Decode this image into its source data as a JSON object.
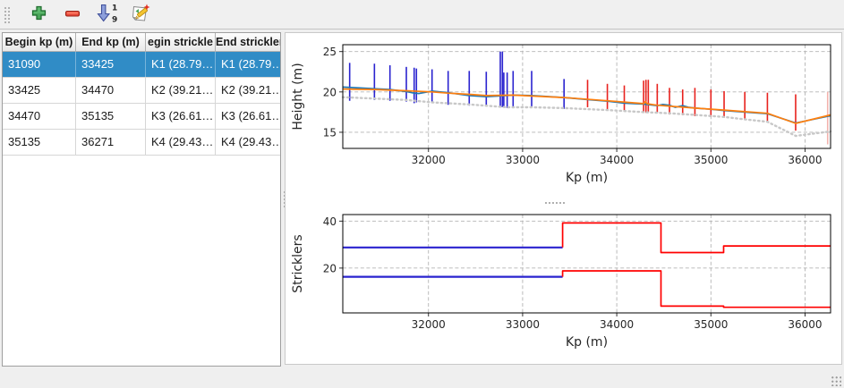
{
  "toolbar": {
    "buttons": [
      {
        "name": "add-row-button",
        "icon": "plus-icon"
      },
      {
        "name": "remove-row-button",
        "icon": "minus-icon"
      },
      {
        "name": "sort-button",
        "icon": "sort-descending-1-9-icon"
      },
      {
        "name": "edit-button",
        "icon": "edit-document-pencil-icon"
      }
    ]
  },
  "table": {
    "columns": [
      "Begin kp (m)",
      "End kp (m)",
      "egin strickle",
      "End strickler"
    ],
    "selected_row_index": 0,
    "rows": [
      {
        "cells": [
          "31090",
          "33425",
          "K1 (28.79…",
          "K1 (28.79…"
        ]
      },
      {
        "cells": [
          "33425",
          "34470",
          "K2 (39.21…",
          "K2 (39.21…"
        ]
      },
      {
        "cells": [
          "34470",
          "35135",
          "K3 (26.61…",
          "K3 (26.61…"
        ]
      },
      {
        "cells": [
          "35135",
          "36271",
          "K4 (29.43…",
          "K4 (29.43…"
        ]
      }
    ]
  },
  "colors": {
    "selection": "#308cc6",
    "section_blue": "#2a23cf",
    "section_red": "#e8211d",
    "profile_blue": "#1f77b4",
    "profile_orange": "#ff7f0e",
    "profile_gray_dotted": "#c8c8c8"
  },
  "chart_data": [
    {
      "type": "line",
      "title": "",
      "xlabel": "Kp (m)",
      "ylabel": "Height (m)",
      "xlim": [
        31090,
        36271
      ],
      "ylim": [
        13.0,
        25.85
      ],
      "xticks": [
        32000,
        33000,
        34000,
        35000,
        36000
      ],
      "yticks": [
        15,
        20,
        25
      ],
      "grid": true,
      "legend": "none",
      "vlines": [
        {
          "x": 31163,
          "ymin": 18.9,
          "ymax": 23.6,
          "color": "#2a23cf"
        },
        {
          "x": 31426,
          "ymin": 19.0,
          "ymax": 23.5,
          "color": "#2a23cf"
        },
        {
          "x": 31591,
          "ymin": 18.9,
          "ymax": 23.3,
          "color": "#2a23cf"
        },
        {
          "x": 31765,
          "ymin": 18.8,
          "ymax": 23.1,
          "color": "#2a23cf"
        },
        {
          "x": 31848,
          "ymin": 18.6,
          "ymax": 23.0,
          "color": "#2a23cf"
        },
        {
          "x": 31872,
          "ymin": 18.7,
          "ymax": 22.9,
          "color": "#2a23cf"
        },
        {
          "x": 32038,
          "ymin": 18.6,
          "ymax": 22.8,
          "color": "#2a23cf"
        },
        {
          "x": 32209,
          "ymin": 18.4,
          "ymax": 22.6,
          "color": "#2a23cf"
        },
        {
          "x": 32433,
          "ymin": 18.3,
          "ymax": 22.6,
          "color": "#2a23cf"
        },
        {
          "x": 32614,
          "ymin": 18.4,
          "ymax": 22.5,
          "color": "#2a23cf"
        },
        {
          "x": 32763,
          "ymin": 18.1,
          "ymax": 25.0,
          "color": "#2a23cf"
        },
        {
          "x": 32785,
          "ymin": 18.1,
          "ymax": 25.0,
          "color": "#2a23cf"
        },
        {
          "x": 32800,
          "ymin": 18.1,
          "ymax": 22.4,
          "color": "#2a23cf"
        },
        {
          "x": 32836,
          "ymin": 18.0,
          "ymax": 22.4,
          "color": "#2a23cf"
        },
        {
          "x": 32899,
          "ymin": 18.2,
          "ymax": 22.6,
          "color": "#2a23cf"
        },
        {
          "x": 33096,
          "ymin": 18.1,
          "ymax": 22.6,
          "color": "#2a23cf"
        },
        {
          "x": 33440,
          "ymin": 17.9,
          "ymax": 21.6,
          "color": "#2a23cf"
        },
        {
          "x": 33690,
          "ymin": 18.1,
          "ymax": 21.5,
          "color": "#e8211d"
        },
        {
          "x": 33900,
          "ymin": 17.8,
          "ymax": 21.0,
          "color": "#e8211d"
        },
        {
          "x": 34080,
          "ymin": 17.6,
          "ymax": 20.8,
          "color": "#e8211d"
        },
        {
          "x": 34285,
          "ymin": 17.4,
          "ymax": 21.4,
          "color": "#e8211d"
        },
        {
          "x": 34310,
          "ymin": 17.4,
          "ymax": 21.5,
          "color": "#e8211d"
        },
        {
          "x": 34335,
          "ymin": 17.5,
          "ymax": 21.5,
          "color": "#e8211d"
        },
        {
          "x": 34430,
          "ymin": 17.4,
          "ymax": 21.0,
          "color": "#e8211d"
        },
        {
          "x": 34560,
          "ymin": 17.2,
          "ymax": 20.5,
          "color": "#e8211d"
        },
        {
          "x": 34700,
          "ymin": 17.1,
          "ymax": 20.3,
          "color": "#e8211d"
        },
        {
          "x": 34830,
          "ymin": 17.0,
          "ymax": 20.5,
          "color": "#e8211d"
        },
        {
          "x": 35000,
          "ymin": 16.9,
          "ymax": 20.3,
          "color": "#e8211d"
        },
        {
          "x": 35140,
          "ymin": 16.8,
          "ymax": 20.1,
          "color": "#e8211d"
        },
        {
          "x": 35360,
          "ymin": 16.6,
          "ymax": 20.0,
          "color": "#e8211d"
        },
        {
          "x": 35600,
          "ymin": 16.4,
          "ymax": 19.9,
          "color": "#e8211d"
        },
        {
          "x": 35900,
          "ymin": 15.2,
          "ymax": 19.7,
          "color": "#e8211d"
        },
        {
          "x": 36240,
          "ymin": 13.5,
          "ymax": 20.0,
          "color": "#f2b3ad"
        }
      ],
      "series": [
        {
          "name": "lowest-point-dotted-gray",
          "color": "#c8c8c8",
          "dash": "1.5 3.5",
          "width": 2.4,
          "x": [
            31090,
            31765,
            32038,
            32433,
            32836,
            33096,
            33440,
            33900,
            34285,
            34560,
            34830,
            35140,
            35360,
            35600,
            35900,
            36271
          ],
          "y": [
            19.35,
            19.0,
            18.7,
            18.45,
            18.1,
            18.1,
            18.0,
            17.75,
            17.5,
            17.35,
            17.15,
            16.9,
            16.6,
            16.3,
            14.55,
            15.1
          ]
        },
        {
          "name": "height-profile-blue",
          "color": "#1f77b4",
          "width": 1.7,
          "x": [
            31090,
            31426,
            31591,
            31765,
            31848,
            31900,
            32038,
            32209,
            32433,
            32614,
            32763,
            32899,
            33096,
            33440,
            33690,
            33900,
            34080,
            34285,
            34430,
            34490,
            34560,
            34620,
            34700,
            34760,
            34830,
            35000,
            35140,
            35360,
            35600,
            35900,
            36271
          ],
          "y": [
            20.6,
            20.4,
            20.3,
            20.05,
            19.85,
            19.8,
            20.1,
            19.9,
            19.55,
            19.4,
            19.5,
            19.6,
            19.55,
            19.3,
            19.05,
            18.85,
            18.6,
            18.5,
            18.3,
            18.45,
            18.35,
            18.1,
            18.3,
            18.1,
            18.0,
            17.85,
            17.7,
            17.5,
            17.3,
            16.15,
            17.05
          ]
        },
        {
          "name": "height-profile-orange",
          "color": "#ff7f0e",
          "width": 1.7,
          "x": [
            31090,
            31426,
            31765,
            32038,
            32209,
            32433,
            32614,
            32899,
            33440,
            33900,
            34285,
            34305,
            34320,
            34340,
            34430,
            34830,
            35140,
            35360,
            35600,
            35900,
            36271
          ],
          "y": [
            20.35,
            20.3,
            20.15,
            20.0,
            19.85,
            19.7,
            19.55,
            19.6,
            19.3,
            18.9,
            18.55,
            18.8,
            18.55,
            18.5,
            18.35,
            18.0,
            17.75,
            17.55,
            17.35,
            16.1,
            17.15
          ]
        }
      ]
    },
    {
      "type": "line",
      "title": "",
      "xlabel": "Kp (m)",
      "ylabel": "Stricklers",
      "xlim": [
        31090,
        36271
      ],
      "ylim": [
        0.9,
        42.8
      ],
      "xticks": [
        32000,
        33000,
        34000,
        35000,
        36000
      ],
      "yticks": [
        20,
        40
      ],
      "grid": true,
      "legend": "none",
      "vlines": [],
      "series": [
        {
          "name": "upper-strickler-selected-blue",
          "color": "#2a23cf",
          "width": 2.2,
          "x": [
            31090,
            33425
          ],
          "y": [
            28.79,
            28.79
          ]
        },
        {
          "name": "upper-strickler-red",
          "color": "#ff0000",
          "width": 1.7,
          "x": [
            33425,
            33425,
            34470,
            34470,
            35135,
            35135,
            36271
          ],
          "y": [
            28.79,
            39.21,
            39.21,
            26.61,
            26.61,
            29.43,
            29.43
          ]
        },
        {
          "name": "lower-strickler-selected-blue",
          "color": "#2a23cf",
          "width": 2.2,
          "x": [
            31090,
            33425
          ],
          "y": [
            16.3,
            16.3
          ]
        },
        {
          "name": "lower-strickler-red",
          "color": "#ff0000",
          "width": 1.7,
          "x": [
            33425,
            33425,
            34470,
            34470,
            35135,
            35135,
            36271
          ],
          "y": [
            16.3,
            18.8,
            18.8,
            3.8,
            3.8,
            3.3,
            3.3
          ]
        }
      ]
    }
  ]
}
